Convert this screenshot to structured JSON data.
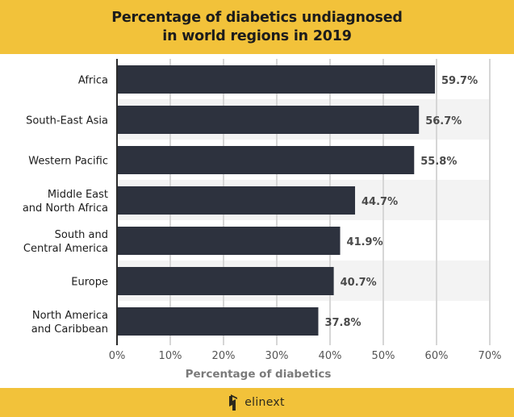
{
  "header": {
    "title_line1": "Percentage of diabetics undiagnosed",
    "title_line2": "in world regions in 2019"
  },
  "footer": {
    "brand": "elinext",
    "logo_icon": "elinext-logo-icon"
  },
  "colors": {
    "banner": "#f2c23a",
    "bar": "#2d323e",
    "band_alt": "#f3f3f3",
    "grid": "#d6d6d6"
  },
  "chart_data": {
    "type": "bar",
    "orientation": "horizontal",
    "title": "Percentage of diabetics undiagnosed in world regions in 2019",
    "xlabel": "Percentage of diabetics",
    "ylabel": "",
    "categories": [
      [
        "Africa"
      ],
      [
        "South-East Asia"
      ],
      [
        "Western Pacific"
      ],
      [
        "Middle East",
        "and North Africa"
      ],
      [
        "South and",
        "Central America"
      ],
      [
        "Europe"
      ],
      [
        "North America",
        "and Caribbean"
      ]
    ],
    "values": [
      59.7,
      56.7,
      55.8,
      44.7,
      41.9,
      40.7,
      37.8
    ],
    "value_labels": [
      "59.7%",
      "56.7%",
      "55.8%",
      "44.7%",
      "41.9%",
      "40.7%",
      "37.8%"
    ],
    "xlim": [
      0,
      70
    ],
    "xticks": [
      0,
      10,
      20,
      30,
      40,
      50,
      60,
      70
    ],
    "xtick_labels": [
      "0%",
      "10%",
      "20%",
      "30%",
      "40%",
      "50%",
      "60%",
      "70%"
    ],
    "grid": true,
    "legend": "none"
  }
}
